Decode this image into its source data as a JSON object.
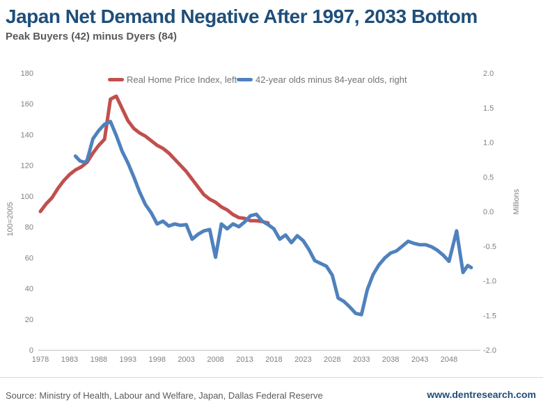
{
  "page": {
    "title": "Japan Net Demand Negative After 1997, 2033 Bottom",
    "subtitle": "Peak Buyers (42) minus Dyers (84)",
    "source": "Source: Ministry of Health, Labour and Welfare, Japan, Dallas Federal Reserve",
    "website": "www.dentresearch.com"
  },
  "colors": {
    "title": "#1f4e79",
    "subtitle": "#595959",
    "website": "#1f4e79",
    "red_line": "#c0504d",
    "blue_line": "#4f81bd",
    "axis_text": "#7f7f7f",
    "axis_line": "#c9c9c9"
  },
  "chart_data": {
    "type": "line",
    "title": "Japan Net Demand Negative After 1997, 2033 Bottom",
    "subtitle": "Peak Buyers (42) minus Dyers (84)",
    "grid": "off",
    "legend_position": "top-inside",
    "left_axis": {
      "label": "100=2005",
      "range": [
        0,
        180
      ],
      "ticks": [
        {
          "label": "180",
          "v": 180
        },
        {
          "label": "160",
          "v": 160
        },
        {
          "label": "140",
          "v": 140
        },
        {
          "label": "120",
          "v": 120
        },
        {
          "label": "100",
          "v": 100
        },
        {
          "label": "80",
          "v": 80
        },
        {
          "label": "60",
          "v": 60
        },
        {
          "label": "40",
          "v": 40
        },
        {
          "label": "20",
          "v": 20
        },
        {
          "label": "0",
          "v": 0
        }
      ]
    },
    "right_axis": {
      "label": "Millions",
      "range": [
        -2.0,
        2.0
      ],
      "ticks": [
        {
          "label": "2.0",
          "v": 2.0
        },
        {
          "label": "1.5",
          "v": 1.5
        },
        {
          "label": "1.0",
          "v": 1.0
        },
        {
          "label": "0.5",
          "v": 0.5
        },
        {
          "label": "0.0",
          "v": 0.0
        },
        {
          "label": "-0.5",
          "v": -0.5
        },
        {
          "label": "-1.0",
          "v": -1.0
        },
        {
          "label": "-1.5",
          "v": -1.5
        },
        {
          "label": "-2.0",
          "v": -2.0
        }
      ]
    },
    "x_axis": {
      "range": [
        1978,
        2052
      ],
      "ticks": [
        1978,
        1983,
        1988,
        1993,
        1998,
        2003,
        2008,
        2013,
        2018,
        2023,
        2028,
        2033,
        2038,
        2043,
        2048
      ]
    },
    "series": [
      {
        "name": "Real Home Price Index, left",
        "axis": "left",
        "color": "#c0504d",
        "points": [
          [
            1978,
            90
          ],
          [
            1979,
            95
          ],
          [
            1980,
            99
          ],
          [
            1981,
            105
          ],
          [
            1982,
            110
          ],
          [
            1983,
            114
          ],
          [
            1984,
            117
          ],
          [
            1985,
            119
          ],
          [
            1986,
            122
          ],
          [
            1987,
            128
          ],
          [
            1988,
            133
          ],
          [
            1989,
            137
          ],
          [
            1990,
            163
          ],
          [
            1991,
            165
          ],
          [
            1992,
            157
          ],
          [
            1993,
            149
          ],
          [
            1994,
            144
          ],
          [
            1995,
            141
          ],
          [
            1996,
            139
          ],
          [
            1997,
            136
          ],
          [
            1998,
            133
          ],
          [
            1999,
            131
          ],
          [
            2000,
            128
          ],
          [
            2001,
            124
          ],
          [
            2002,
            120
          ],
          [
            2003,
            116
          ],
          [
            2004,
            111
          ],
          [
            2005,
            106
          ],
          [
            2006,
            101
          ],
          [
            2007,
            98
          ],
          [
            2008,
            96
          ],
          [
            2009,
            93
          ],
          [
            2010,
            91
          ],
          [
            2011,
            88
          ],
          [
            2012,
            86
          ],
          [
            2013,
            85.5
          ],
          [
            2014,
            84
          ],
          [
            2015,
            84
          ],
          [
            2016,
            83.5
          ],
          [
            2017,
            82.5
          ]
        ]
      },
      {
        "name": "42-year olds minus 84-year olds, right",
        "axis": "right",
        "color": "#4f81bd",
        "points": [
          [
            1984,
            0.8
          ],
          [
            1984.8,
            0.73
          ],
          [
            1985.6,
            0.71
          ],
          [
            1986,
            0.74
          ],
          [
            1987,
            1.05
          ],
          [
            1988,
            1.17
          ],
          [
            1989,
            1.26
          ],
          [
            1990,
            1.3
          ],
          [
            1991,
            1.1
          ],
          [
            1992,
            0.87
          ],
          [
            1993,
            0.7
          ],
          [
            1994,
            0.5
          ],
          [
            1995,
            0.28
          ],
          [
            1996,
            0.1
          ],
          [
            1997,
            -0.02
          ],
          [
            1998,
            -0.18
          ],
          [
            1999,
            -0.14
          ],
          [
            2000,
            -0.21
          ],
          [
            2001,
            -0.18
          ],
          [
            2002,
            -0.2
          ],
          [
            2003,
            -0.19
          ],
          [
            2004,
            -0.4
          ],
          [
            2005,
            -0.33
          ],
          [
            2006,
            -0.28
          ],
          [
            2007,
            -0.26
          ],
          [
            2008,
            -0.66
          ],
          [
            2009,
            -0.18
          ],
          [
            2010,
            -0.25
          ],
          [
            2011,
            -0.18
          ],
          [
            2012,
            -0.22
          ],
          [
            2013,
            -0.15
          ],
          [
            2014,
            -0.06
          ],
          [
            2015,
            -0.04
          ],
          [
            2016,
            -0.14
          ],
          [
            2017,
            -0.19
          ],
          [
            2018,
            -0.25
          ],
          [
            2019,
            -0.4
          ],
          [
            2020,
            -0.34
          ],
          [
            2021,
            -0.45
          ],
          [
            2022,
            -0.35
          ],
          [
            2023,
            -0.42
          ],
          [
            2024,
            -0.55
          ],
          [
            2025,
            -0.71
          ],
          [
            2026,
            -0.75
          ],
          [
            2027,
            -0.79
          ],
          [
            2028,
            -0.92
          ],
          [
            2029,
            -1.25
          ],
          [
            2030,
            -1.3
          ],
          [
            2031,
            -1.38
          ],
          [
            2032,
            -1.47
          ],
          [
            2033,
            -1.49
          ],
          [
            2034,
            -1.13
          ],
          [
            2035,
            -0.91
          ],
          [
            2036,
            -0.77
          ],
          [
            2037,
            -0.67
          ],
          [
            2038,
            -0.6
          ],
          [
            2039,
            -0.57
          ],
          [
            2040,
            -0.5
          ],
          [
            2041,
            -0.43
          ],
          [
            2042,
            -0.46
          ],
          [
            2043,
            -0.48
          ],
          [
            2044,
            -0.48
          ],
          [
            2045,
            -0.51
          ],
          [
            2046,
            -0.56
          ],
          [
            2047,
            -0.63
          ],
          [
            2048,
            -0.72
          ],
          [
            2049.3,
            -0.28
          ],
          [
            2050.4,
            -0.88
          ],
          [
            2051.2,
            -0.78
          ],
          [
            2051.8,
            -0.81
          ]
        ]
      }
    ]
  }
}
